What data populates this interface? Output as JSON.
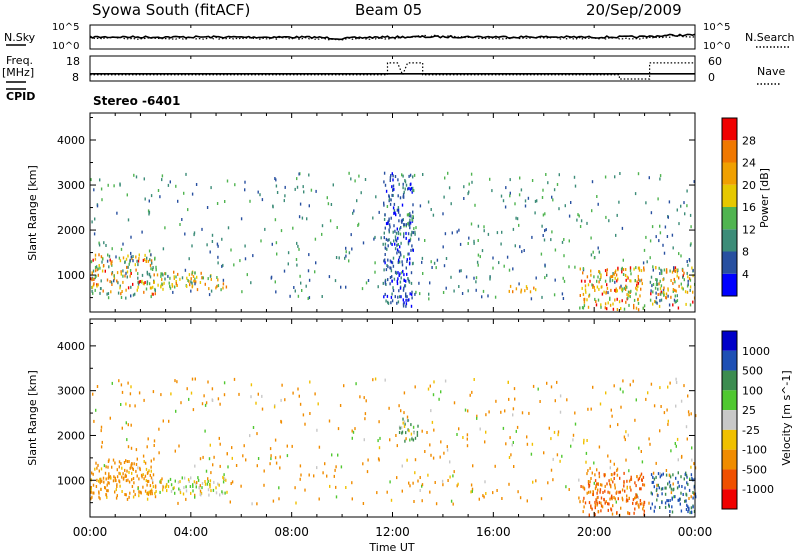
{
  "header": {
    "station": "Syowa South (fitACF)",
    "beam": "Beam 05",
    "date": "20/Sep/2009"
  },
  "strip_labels": {
    "nsky": "N.Sky",
    "nsearch": "N.Search",
    "freq_top": "Freq.",
    "freq_unit": "[MHz]",
    "nave": "Nave",
    "cpid": "CPID",
    "cpid_value": "Stereo -6401",
    "noise_ticks": [
      "10^5",
      "10^0"
    ],
    "freq_ticks": [
      "18",
      "8"
    ],
    "nave_ticks": [
      "60",
      "0"
    ]
  },
  "colors": {
    "power": [
      "#0000ff",
      "#2850a0",
      "#3c8c78",
      "#50b450",
      "#e6c800",
      "#f0a000",
      "#f07800",
      "#f00000"
    ],
    "velocity": [
      "#0000c8",
      "#1e50b4",
      "#3c8c50",
      "#50c830",
      "#c8c8c8",
      "#f0c000",
      "#f08c00",
      "#f05000",
      "#f00000"
    ]
  },
  "chart_data": [
    {
      "type": "line",
      "panel": "noise",
      "ylabel_left": "N.Sky",
      "ylabel_right": "N.Search",
      "yscale": "log",
      "ylim": [
        1,
        100000
      ],
      "x": [
        0,
        1,
        2,
        3,
        4,
        5,
        6,
        7,
        8,
        9,
        10,
        11,
        12,
        13,
        14,
        15,
        16,
        17,
        18,
        19,
        20,
        21,
        22,
        23,
        24
      ],
      "series": [
        {
          "name": "N.Sky",
          "style": "solid",
          "values": [
            300,
            320,
            310,
            300,
            310,
            320,
            300,
            290,
            300,
            250,
            120,
            250,
            300,
            330,
            350,
            360,
            340,
            330,
            320,
            300,
            290,
            310,
            350,
            800,
            1000
          ]
        },
        {
          "name": "N.Search",
          "style": "dotted",
          "values": [
            150,
            160,
            150,
            150,
            160,
            160,
            150,
            140,
            150,
            120,
            80,
            120,
            150,
            500,
            500,
            180,
            170,
            160,
            160,
            150,
            150,
            160,
            170,
            400,
            500
          ]
        }
      ]
    },
    {
      "type": "line",
      "panel": "frequency",
      "ylabel_left": "Freq. [MHz]",
      "ylabel_right": "Nave",
      "ylim_left": [
        8,
        18
      ],
      "ylim_right": [
        0,
        60
      ],
      "series": [
        {
          "name": "Freq.",
          "style": "solid",
          "x": [
            0,
            24
          ],
          "values": [
            10.5,
            10.5
          ]
        },
        {
          "name": "Nave",
          "style": "dotted",
          "x": [
            0,
            11.8,
            11.8,
            12.2,
            12.4,
            12.6,
            13.2,
            13.2,
            21.0,
            21.0,
            22.2,
            22.2,
            24
          ],
          "values": [
            12,
            12,
            46,
            46,
            12,
            46,
            46,
            12,
            12,
            0,
            0,
            46,
            46
          ]
        }
      ]
    },
    {
      "type": "heatmap",
      "panel": "power",
      "xlabel": "",
      "ylabel": "Slant Range [km]",
      "colorbar_label": "Power [dB]",
      "colorbar_ticks": [
        4,
        8,
        12,
        16,
        20,
        24,
        28
      ],
      "clim": [
        0,
        32
      ],
      "xlim": [
        0,
        24
      ],
      "ylim": [
        180,
        4600
      ],
      "yticks": [
        1000,
        2000,
        3000,
        4000
      ],
      "regions": [
        {
          "x": [
            0.0,
            2.6
          ],
          "y": [
            600,
            1500
          ],
          "values_range": [
            8,
            30
          ]
        },
        {
          "x": [
            2.6,
            5.4
          ],
          "y": [
            700,
            1100
          ],
          "values_range": [
            10,
            28
          ]
        },
        {
          "x": [
            0.0,
            24.0
          ],
          "y": [
            500,
            3300
          ],
          "values_range": [
            4,
            16
          ],
          "note": "scattered"
        },
        {
          "x": [
            11.6,
            12.8
          ],
          "y": [
            300,
            3300
          ],
          "values_range": [
            2,
            10
          ]
        },
        {
          "x": [
            12.2,
            13.0
          ],
          "y": [
            1900,
            2400
          ],
          "values_range": [
            4,
            16
          ]
        },
        {
          "x": [
            16.6,
            17.8
          ],
          "y": [
            650,
            800
          ],
          "values_range": [
            18,
            26
          ]
        },
        {
          "x": [
            19.4,
            22.0
          ],
          "y": [
            250,
            1200
          ],
          "values_range": [
            12,
            30
          ]
        },
        {
          "x": [
            22.2,
            24.0
          ],
          "y": [
            300,
            1200
          ],
          "values_range": [
            4,
            30
          ]
        }
      ]
    },
    {
      "type": "heatmap",
      "panel": "velocity",
      "xlabel": "Time UT",
      "ylabel": "Slant Range [km]",
      "colorbar_label": "Velocity [m s^-1]",
      "colorbar_ticks": [
        1000,
        500,
        100,
        25,
        -25,
        -100,
        -500,
        -1000
      ],
      "xlim": [
        0,
        24
      ],
      "ylim": [
        180,
        4600
      ],
      "xtick_labels": [
        "00:00",
        "04:00",
        "08:00",
        "12:00",
        "16:00",
        "20:00",
        "00:00"
      ],
      "yticks": [
        1000,
        2000,
        3000,
        4000
      ],
      "regions": [
        {
          "x": [
            0.0,
            2.6
          ],
          "y": [
            600,
            1500
          ],
          "values_range": [
            -500,
            -25
          ]
        },
        {
          "x": [
            2.6,
            5.4
          ],
          "y": [
            700,
            1100
          ],
          "values_range": [
            -100,
            100
          ]
        },
        {
          "x": [
            0.0,
            24.0
          ],
          "y": [
            500,
            3300
          ],
          "values_range": [
            -500,
            100
          ],
          "note": "scattered"
        },
        {
          "x": [
            12.2,
            13.0
          ],
          "y": [
            1900,
            2400
          ],
          "values_range": [
            -100,
            500
          ]
        },
        {
          "x": [
            19.4,
            22.0
          ],
          "y": [
            250,
            1200
          ],
          "values_range": [
            -1000,
            -100
          ]
        },
        {
          "x": [
            22.2,
            24.0
          ],
          "y": [
            300,
            1200
          ],
          "values_range": [
            100,
            1000
          ]
        }
      ]
    }
  ]
}
